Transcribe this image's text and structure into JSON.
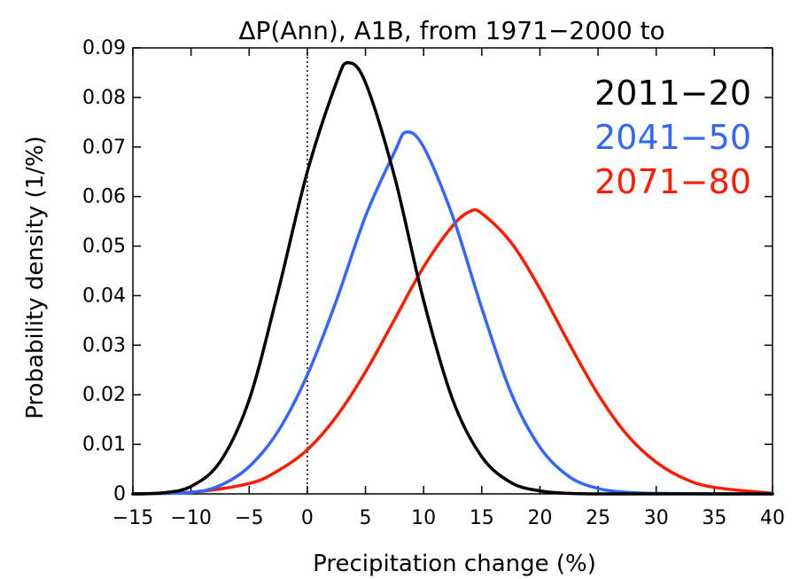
{
  "chart_data": {
    "type": "line",
    "title": "ΔP(Ann), A1B, from 1971−2000 to",
    "xlabel": "Precipitation change (%)",
    "ylabel": "Probability density (1/%)",
    "xlim": [
      -15,
      40
    ],
    "ylim": [
      0,
      0.09
    ],
    "xticks": [
      -15,
      -10,
      -5,
      0,
      5,
      10,
      15,
      20,
      25,
      30,
      35,
      40
    ],
    "xtick_labels": [
      "−15",
      "−10",
      "−5",
      "0",
      "5",
      "10",
      "15",
      "20",
      "25",
      "30",
      "35",
      "40"
    ],
    "yticks": [
      0,
      0.01,
      0.02,
      0.03,
      0.04,
      0.05,
      0.06,
      0.07,
      0.08,
      0.09
    ],
    "ytick_labels": [
      "0",
      "0.01",
      "0.02",
      "0.03",
      "0.04",
      "0.05",
      "0.06",
      "0.07",
      "0.08",
      "0.09"
    ],
    "reference_line": {
      "x": 0,
      "style": "dotted"
    },
    "legend_position": "top-right",
    "grid": false,
    "series": [
      {
        "name": "2011−20",
        "color": "#000000",
        "x": [
          -15,
          -12.5,
          -10,
          -7.5,
          -5,
          -2.5,
          0,
          2.5,
          3.5,
          5,
          7.5,
          10,
          12.5,
          15,
          17.5,
          20,
          22.5,
          25,
          30,
          40
        ],
        "y": [
          0.0,
          0.0002,
          0.0015,
          0.0065,
          0.019,
          0.041,
          0.065,
          0.083,
          0.087,
          0.083,
          0.064,
          0.039,
          0.019,
          0.0075,
          0.0023,
          0.0006,
          0.0001,
          0.0,
          0.0,
          0.0
        ]
      },
      {
        "name": "2041−50",
        "color": "#3366ff",
        "x": [
          -15,
          -10,
          -7.5,
          -5,
          -2.5,
          0,
          2.5,
          5,
          7.5,
          8.5,
          10,
          12.5,
          15,
          17.5,
          20,
          22.5,
          25,
          27.5,
          30,
          35,
          40
        ],
        "y": [
          0.0,
          0.0003,
          0.0017,
          0.0055,
          0.0127,
          0.024,
          0.039,
          0.056,
          0.069,
          0.073,
          0.07,
          0.056,
          0.0375,
          0.0205,
          0.0094,
          0.0035,
          0.0011,
          0.0003,
          0.0001,
          0.0,
          0.0
        ]
      },
      {
        "name": "2071−80",
        "color": "#ff1a00",
        "x": [
          -15,
          -10,
          -5,
          -2.5,
          0,
          2.5,
          5,
          7.5,
          10,
          12.5,
          14,
          15,
          17.5,
          20,
          22.5,
          25,
          27.5,
          30,
          32.5,
          35,
          40
        ],
        "y": [
          0.0,
          0.0003,
          0.0021,
          0.0047,
          0.0089,
          0.0156,
          0.0246,
          0.0352,
          0.0458,
          0.0541,
          0.057,
          0.0566,
          0.0508,
          0.0414,
          0.0304,
          0.0201,
          0.0119,
          0.0064,
          0.003,
          0.0013,
          0.0001
        ]
      }
    ]
  }
}
